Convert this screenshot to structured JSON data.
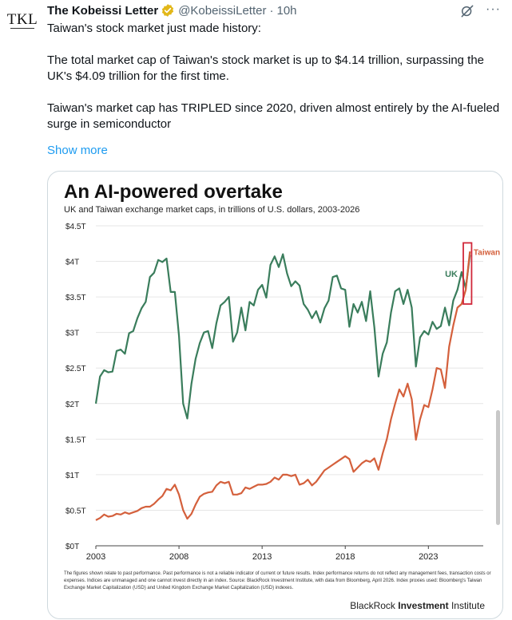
{
  "author": {
    "avatar_text": "TKL",
    "name": "The Kobeissi Letter",
    "handle": "@KobeissiLetter",
    "separator": "·",
    "time": "10h"
  },
  "tweet": {
    "paragraphs": [
      "Taiwan's stock market just made history:",
      "The total market cap of Taiwan's stock market is up to $4.14 trillion, surpassing the UK's $4.09 trillion for the first time.",
      "Taiwan's market cap has TRIPLED since 2020, driven almost entirely by the AI-fueled surge in semiconductor"
    ],
    "show_more": "Show more"
  },
  "icons": {
    "verified": "verified-badge-icon",
    "grok": "grok-icon",
    "more": "more-icon"
  },
  "colors": {
    "uk": "#3a7d5c",
    "taiwan": "#d4603c",
    "highlight": "#d0283a",
    "link": "#1d9bf0",
    "badge": "#e2b719"
  },
  "chart_data": {
    "type": "line",
    "title": "An AI-powered overtake",
    "subtitle": "UK and Taiwan exchange market caps, in trillions of U.S. dollars, 2003-2026",
    "xlabel": "",
    "ylabel": "",
    "xlim": [
      2003,
      2026.3
    ],
    "ylim": [
      0,
      4.5
    ],
    "x_ticks": [
      {
        "value": 2003,
        "label": "2003"
      },
      {
        "value": 2008,
        "label": "2008"
      },
      {
        "value": 2013,
        "label": "2013"
      },
      {
        "value": 2018,
        "label": "2018"
      },
      {
        "value": 2023,
        "label": "2023"
      }
    ],
    "y_ticks": [
      {
        "value": 0,
        "label": "$0T"
      },
      {
        "value": 0.5,
        "label": "$0.5T"
      },
      {
        "value": 1,
        "label": "$1T"
      },
      {
        "value": 1.5,
        "label": "$1.5T"
      },
      {
        "value": 2,
        "label": "$2T"
      },
      {
        "value": 2.5,
        "label": "$2.5T"
      },
      {
        "value": 3,
        "label": "$3T"
      },
      {
        "value": 3.5,
        "label": "$3.5T"
      },
      {
        "value": 4,
        "label": "$4T"
      },
      {
        "value": 4.5,
        "label": "$4.5T"
      }
    ],
    "series": [
      {
        "name": "UK",
        "label": "UK",
        "points": [
          [
            2003.0,
            2.0
          ],
          [
            2003.25,
            2.38
          ],
          [
            2003.5,
            2.47
          ],
          [
            2003.75,
            2.44
          ],
          [
            2004.0,
            2.45
          ],
          [
            2004.25,
            2.74
          ],
          [
            2004.5,
            2.76
          ],
          [
            2004.75,
            2.7
          ],
          [
            2005.0,
            2.99
          ],
          [
            2005.25,
            3.02
          ],
          [
            2005.5,
            3.2
          ],
          [
            2005.75,
            3.34
          ],
          [
            2006.0,
            3.43
          ],
          [
            2006.25,
            3.78
          ],
          [
            2006.5,
            3.84
          ],
          [
            2006.75,
            4.02
          ],
          [
            2007.0,
            3.99
          ],
          [
            2007.25,
            4.04
          ],
          [
            2007.5,
            3.57
          ],
          [
            2007.75,
            3.57
          ],
          [
            2008.0,
            2.95
          ],
          [
            2008.25,
            2.0
          ],
          [
            2008.5,
            1.79
          ],
          [
            2008.75,
            2.28
          ],
          [
            2009.0,
            2.63
          ],
          [
            2009.25,
            2.85
          ],
          [
            2009.5,
            3.0
          ],
          [
            2009.75,
            3.02
          ],
          [
            2010.0,
            2.78
          ],
          [
            2010.25,
            3.13
          ],
          [
            2010.5,
            3.38
          ],
          [
            2010.75,
            3.43
          ],
          [
            2011.0,
            3.5
          ],
          [
            2011.25,
            2.87
          ],
          [
            2011.5,
            3.0
          ],
          [
            2011.75,
            3.35
          ],
          [
            2012.0,
            3.03
          ],
          [
            2012.25,
            3.43
          ],
          [
            2012.5,
            3.38
          ],
          [
            2012.75,
            3.6
          ],
          [
            2013.0,
            3.67
          ],
          [
            2013.25,
            3.49
          ],
          [
            2013.5,
            3.95
          ],
          [
            2013.75,
            4.07
          ],
          [
            2014.0,
            3.92
          ],
          [
            2014.25,
            4.1
          ],
          [
            2014.5,
            3.83
          ],
          [
            2014.75,
            3.65
          ],
          [
            2015.0,
            3.72
          ],
          [
            2015.25,
            3.66
          ],
          [
            2015.5,
            3.4
          ],
          [
            2015.75,
            3.32
          ],
          [
            2016.0,
            3.2
          ],
          [
            2016.25,
            3.3
          ],
          [
            2016.5,
            3.14
          ],
          [
            2016.75,
            3.34
          ],
          [
            2017.0,
            3.45
          ],
          [
            2017.25,
            3.78
          ],
          [
            2017.5,
            3.8
          ],
          [
            2017.75,
            3.62
          ],
          [
            2018.0,
            3.6
          ],
          [
            2018.25,
            3.08
          ],
          [
            2018.5,
            3.4
          ],
          [
            2018.75,
            3.28
          ],
          [
            2019.0,
            3.43
          ],
          [
            2019.25,
            3.16
          ],
          [
            2019.5,
            3.58
          ],
          [
            2019.75,
            3.07
          ],
          [
            2020.0,
            2.38
          ],
          [
            2020.25,
            2.7
          ],
          [
            2020.5,
            2.86
          ],
          [
            2020.75,
            3.28
          ],
          [
            2021.0,
            3.58
          ],
          [
            2021.25,
            3.62
          ],
          [
            2021.5,
            3.4
          ],
          [
            2021.75,
            3.6
          ],
          [
            2022.0,
            3.35
          ],
          [
            2022.25,
            2.52
          ],
          [
            2022.5,
            2.93
          ],
          [
            2022.75,
            3.02
          ],
          [
            2023.0,
            2.97
          ],
          [
            2023.25,
            3.15
          ],
          [
            2023.5,
            3.05
          ],
          [
            2023.75,
            3.09
          ],
          [
            2024.0,
            3.35
          ],
          [
            2024.25,
            3.1
          ],
          [
            2024.5,
            3.45
          ],
          [
            2024.75,
            3.6
          ],
          [
            2025.0,
            3.85
          ],
          [
            2025.25,
            3.62
          ],
          [
            2025.5,
            4.09
          ]
        ]
      },
      {
        "name": "Taiwan",
        "label": "Taiwan",
        "points": [
          [
            2003.0,
            0.36
          ],
          [
            2003.25,
            0.39
          ],
          [
            2003.5,
            0.44
          ],
          [
            2003.75,
            0.41
          ],
          [
            2004.0,
            0.42
          ],
          [
            2004.25,
            0.45
          ],
          [
            2004.5,
            0.44
          ],
          [
            2004.75,
            0.47
          ],
          [
            2005.0,
            0.45
          ],
          [
            2005.25,
            0.47
          ],
          [
            2005.5,
            0.49
          ],
          [
            2005.75,
            0.53
          ],
          [
            2006.0,
            0.55
          ],
          [
            2006.25,
            0.55
          ],
          [
            2006.5,
            0.59
          ],
          [
            2006.75,
            0.65
          ],
          [
            2007.0,
            0.7
          ],
          [
            2007.25,
            0.8
          ],
          [
            2007.5,
            0.78
          ],
          [
            2007.75,
            0.86
          ],
          [
            2008.0,
            0.72
          ],
          [
            2008.25,
            0.5
          ],
          [
            2008.5,
            0.38
          ],
          [
            2008.75,
            0.45
          ],
          [
            2009.0,
            0.58
          ],
          [
            2009.25,
            0.69
          ],
          [
            2009.5,
            0.73
          ],
          [
            2009.75,
            0.75
          ],
          [
            2010.0,
            0.76
          ],
          [
            2010.25,
            0.85
          ],
          [
            2010.5,
            0.9
          ],
          [
            2010.75,
            0.88
          ],
          [
            2011.0,
            0.9
          ],
          [
            2011.25,
            0.72
          ],
          [
            2011.5,
            0.72
          ],
          [
            2011.75,
            0.74
          ],
          [
            2012.0,
            0.82
          ],
          [
            2012.25,
            0.8
          ],
          [
            2012.5,
            0.83
          ],
          [
            2012.75,
            0.86
          ],
          [
            2013.0,
            0.86
          ],
          [
            2013.25,
            0.87
          ],
          [
            2013.5,
            0.9
          ],
          [
            2013.75,
            0.96
          ],
          [
            2014.0,
            0.93
          ],
          [
            2014.25,
            1.0
          ],
          [
            2014.5,
            1.0
          ],
          [
            2014.75,
            0.98
          ],
          [
            2015.0,
            1.0
          ],
          [
            2015.25,
            0.86
          ],
          [
            2015.5,
            0.88
          ],
          [
            2015.75,
            0.93
          ],
          [
            2016.0,
            0.85
          ],
          [
            2016.25,
            0.9
          ],
          [
            2016.5,
            0.98
          ],
          [
            2016.75,
            1.06
          ],
          [
            2017.0,
            1.1
          ],
          [
            2017.25,
            1.14
          ],
          [
            2017.5,
            1.18
          ],
          [
            2017.75,
            1.22
          ],
          [
            2018.0,
            1.26
          ],
          [
            2018.25,
            1.22
          ],
          [
            2018.5,
            1.04
          ],
          [
            2018.75,
            1.1
          ],
          [
            2019.0,
            1.16
          ],
          [
            2019.25,
            1.2
          ],
          [
            2019.5,
            1.18
          ],
          [
            2019.75,
            1.23
          ],
          [
            2020.0,
            1.07
          ],
          [
            2020.25,
            1.3
          ],
          [
            2020.5,
            1.5
          ],
          [
            2020.75,
            1.78
          ],
          [
            2021.0,
            2.0
          ],
          [
            2021.25,
            2.2
          ],
          [
            2021.5,
            2.1
          ],
          [
            2021.75,
            2.28
          ],
          [
            2022.0,
            2.06
          ],
          [
            2022.25,
            1.49
          ],
          [
            2022.5,
            1.78
          ],
          [
            2022.75,
            1.98
          ],
          [
            2023.0,
            1.95
          ],
          [
            2023.25,
            2.2
          ],
          [
            2023.5,
            2.5
          ],
          [
            2023.75,
            2.48
          ],
          [
            2024.0,
            2.22
          ],
          [
            2024.25,
            2.8
          ],
          [
            2024.5,
            3.1
          ],
          [
            2024.75,
            3.35
          ],
          [
            2025.0,
            3.4
          ],
          [
            2025.25,
            3.6
          ],
          [
            2025.5,
            4.14
          ]
        ]
      }
    ],
    "highlight_box": {
      "x_range": [
        2025.1,
        2025.6
      ],
      "y_range": [
        3.4,
        4.26
      ]
    },
    "footnote": "The figures shown relate to past performance. Past performance is not a reliable indicator of current or future results. Index performance returns do not reflect any management fees, transaction costs or expenses. Indices are unmanaged and one cannot invest directly in an index. Source: BlackRock Investment Institute, with data from Bloomberg, April 2026. Index proxies used: Bloomberg's Taiwan Exchange Market Capitalization (USD) and United Kingdom Exchange Market Capitalization (USD) indexes.",
    "source_brand_plain": "BlackRock",
    "source_brand_bold": "Investment",
    "source_brand_tail": "Institute"
  }
}
